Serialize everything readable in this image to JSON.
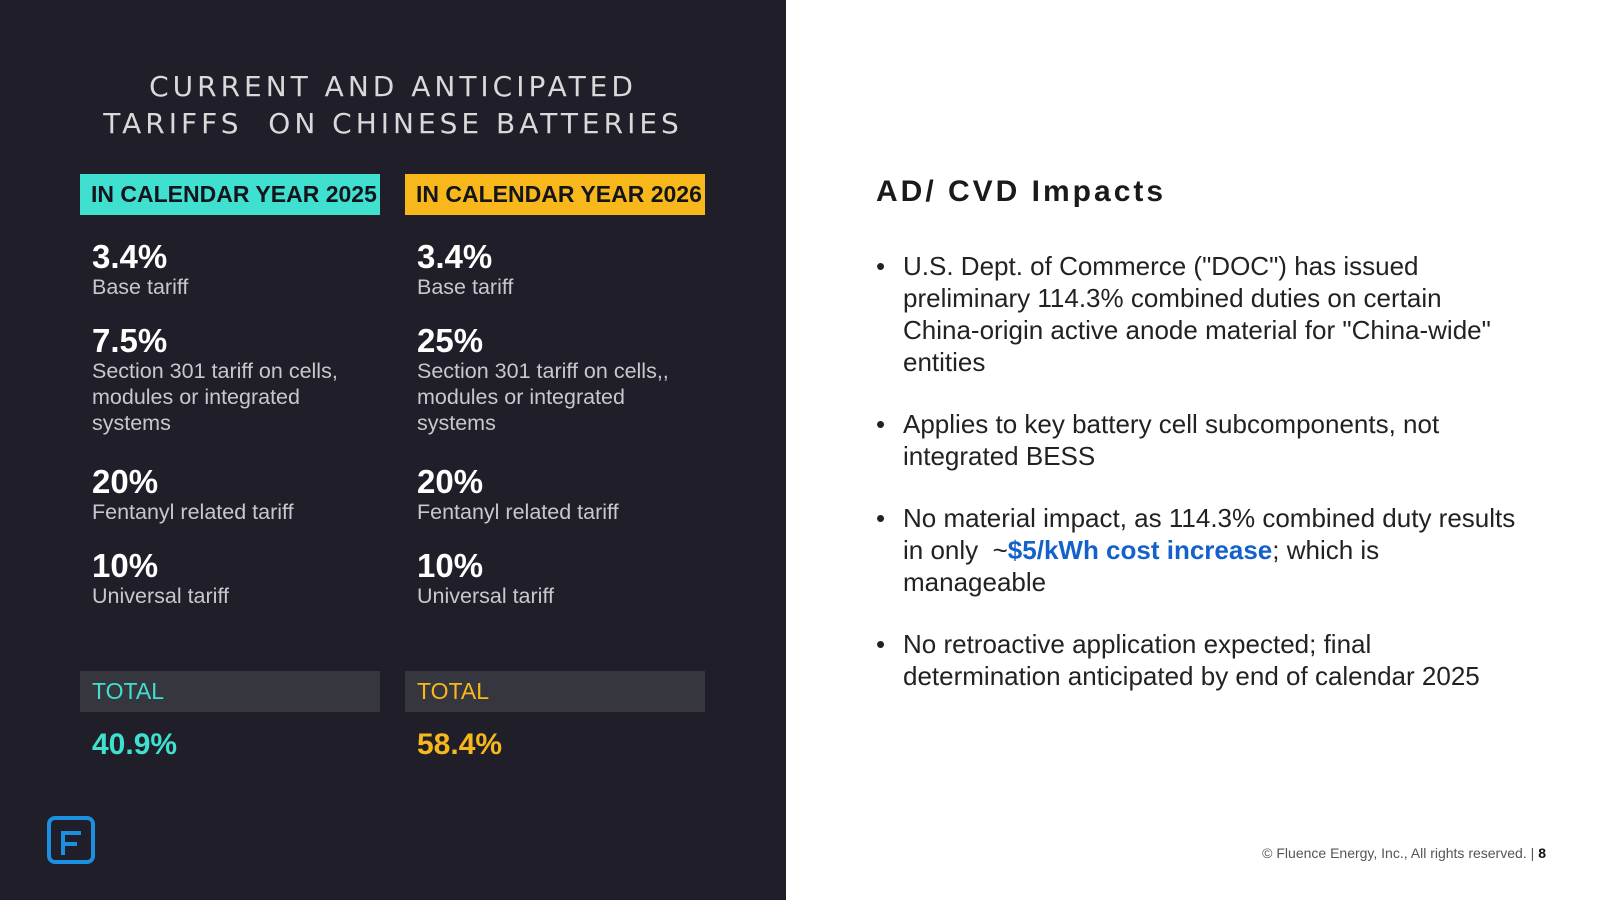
{
  "left": {
    "title_line1": "CURRENT AND ANTICIPATED",
    "title_line2": "TARIFFS  ON CHINESE BATTERIES",
    "columns": [
      {
        "header": "IN CALENDAR YEAR 2025",
        "items": [
          {
            "pct": "3.4%",
            "desc": "Base tariff"
          },
          {
            "pct": "7.5%",
            "desc": "Section 301 tariff on cells, modules or integrated systems"
          },
          {
            "pct": "20%",
            "desc": "Fentanyl related tariff"
          },
          {
            "pct": "10%",
            "desc": "Universal tariff"
          }
        ],
        "total_label": "TOTAL",
        "total_value": "40.9%"
      },
      {
        "header": "IN CALENDAR YEAR 2026",
        "items": [
          {
            "pct": "3.4%",
            "desc": "Base tariff"
          },
          {
            "pct": "25%",
            "desc": "Section 301 tariff on cells,, modules or integrated systems"
          },
          {
            "pct": "20%",
            "desc": "Fentanyl related tariff"
          },
          {
            "pct": "10%",
            "desc": "Universal tariff"
          }
        ],
        "total_label": "TOTAL",
        "total_value": "58.4%"
      }
    ]
  },
  "right": {
    "title": "AD/ CVD Impacts",
    "bullet_char": "•",
    "bullets": [
      {
        "text": "U.S. Dept. of Commerce (\"DOC\") has issued preliminary 114.3% combined duties on certain China-origin active anode material for \"China-wide\" entities"
      },
      {
        "text": "Applies to key battery cell subcomponents, not integrated BESS"
      },
      {
        "before": "No material impact, as 114.3% combined duty results in only  ~",
        "highlight": "$5/kWh cost increase",
        "after": "; which is manageable"
      },
      {
        "text": "No retroactive application expected; final determination anticipated by end of calendar 2025"
      }
    ]
  },
  "footer": {
    "copyright": "© Fluence Energy, Inc., All rights reserved. |",
    "page": "8"
  },
  "colors": {
    "panel_bg": "#1f1e29",
    "accent_2025": "#40e0d0",
    "accent_2026": "#f8b81b",
    "highlight_blue": "#1461c9",
    "logo_blue": "#1b8fe0"
  },
  "logo_icon": "fluence-logo-icon"
}
